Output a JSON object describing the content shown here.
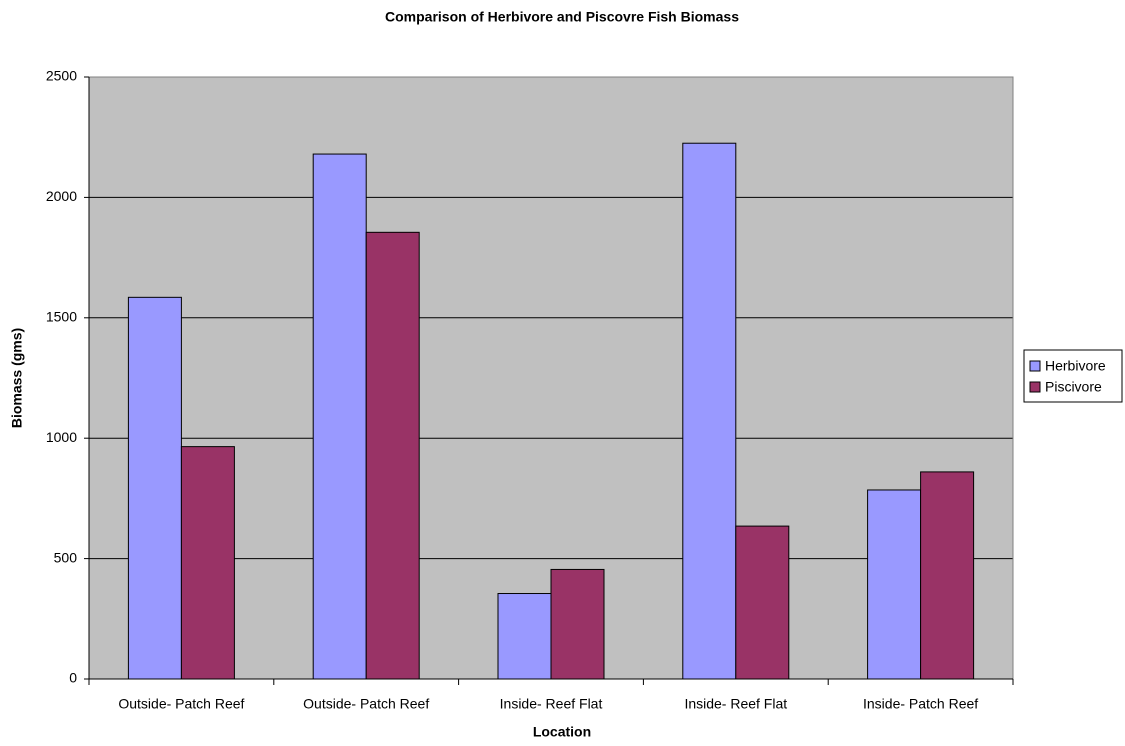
{
  "chart_data": {
    "type": "bar",
    "title": "Comparison of Herbivore and Piscovre Fish Biomass",
    "x_label": "Location",
    "y_label": "Biomass (gms)",
    "categories": [
      "Outside- Patch Reef",
      "Outside- Patch Reef",
      "Inside- Reef Flat",
      "Inside- Reef Flat",
      "Inside- Patch Reef"
    ],
    "series": [
      {
        "name": "Herbivore",
        "color": "#9999ff",
        "values": [
          1585,
          2180,
          355,
          2225,
          785
        ]
      },
      {
        "name": "Piscivore",
        "color": "#993366",
        "values": [
          965,
          1855,
          455,
          635,
          860
        ]
      }
    ],
    "ylim": [
      0,
      2500
    ],
    "yticks": [
      0,
      500,
      1000,
      1500,
      2000,
      2500
    ],
    "grid": true,
    "legend": "right"
  }
}
